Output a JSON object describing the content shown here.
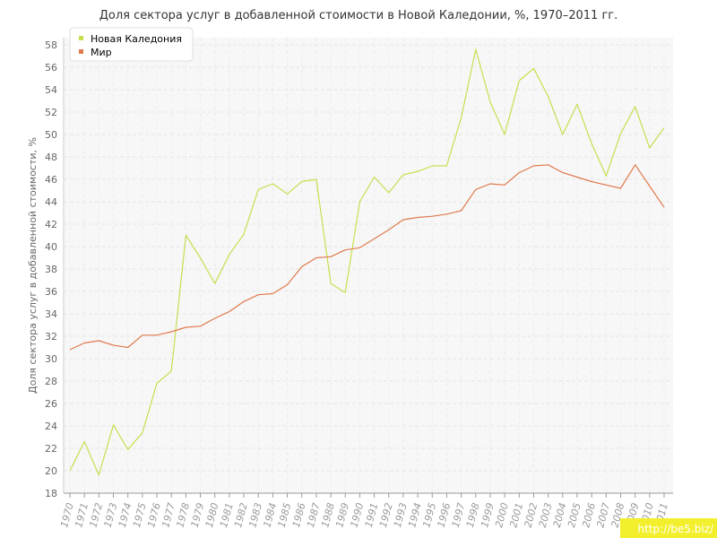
{
  "chart_data": {
    "type": "line",
    "title": "Доля сектора услуг в добавленной стоимости в Новой Каледонии, %, 1970–2011 гг.",
    "xlabel": "",
    "ylabel": "Доля сектора услуг в добавленной стоимости, %",
    "ylim": [
      18,
      58
    ],
    "yticks": [
      18,
      20,
      22,
      24,
      26,
      28,
      30,
      32,
      34,
      36,
      38,
      40,
      42,
      44,
      46,
      48,
      50,
      52,
      54,
      56,
      58
    ],
    "x": [
      "1970",
      "1971",
      "1972",
      "1973",
      "1974",
      "1975",
      "1976",
      "1977",
      "1978",
      "1979",
      "1980",
      "1981",
      "1982",
      "1983",
      "1984",
      "1985",
      "1986",
      "1987",
      "1988",
      "1989",
      "1990",
      "1991",
      "1992",
      "1993",
      "1994",
      "1995",
      "1996",
      "1997",
      "1998",
      "1999",
      "2000",
      "2001",
      "2002",
      "2003",
      "2004",
      "2005",
      "2006",
      "2007",
      "2008",
      "2009",
      "2010",
      "2011"
    ],
    "grid": true,
    "legend_position": "top-left",
    "series": [
      {
        "name": "Новая Каледония",
        "color": "#c6df4f",
        "values": [
          20.0,
          22.6,
          19.6,
          24.1,
          21.9,
          23.4,
          27.8,
          28.9,
          41.0,
          39.0,
          36.7,
          39.3,
          41.1,
          45.1,
          45.6,
          44.7,
          45.8,
          46.0,
          36.7,
          35.9,
          44.0,
          46.2,
          44.8,
          46.4,
          46.7,
          47.2,
          47.2,
          51.5,
          57.6,
          52.9,
          50.0,
          54.8,
          55.9,
          53.4,
          50.0,
          52.7,
          49.2,
          46.3,
          50.1,
          52.5,
          48.8,
          50.6
        ]
      },
      {
        "name": "Мир",
        "color": "#e07a4c",
        "values": [
          30.8,
          31.4,
          31.6,
          31.2,
          31.0,
          32.1,
          32.1,
          32.4,
          32.8,
          32.9,
          33.6,
          34.2,
          35.1,
          35.7,
          35.8,
          36.6,
          38.2,
          39.0,
          39.1,
          39.7,
          39.9,
          40.7,
          41.5,
          42.4,
          42.6,
          42.7,
          42.9,
          43.2,
          45.1,
          45.6,
          45.5,
          46.6,
          47.2,
          47.3,
          46.6,
          46.2,
          45.8,
          45.5,
          45.2,
          47.3,
          45.4,
          43.5
        ]
      }
    ]
  },
  "watermark": "http://be5.biz/"
}
